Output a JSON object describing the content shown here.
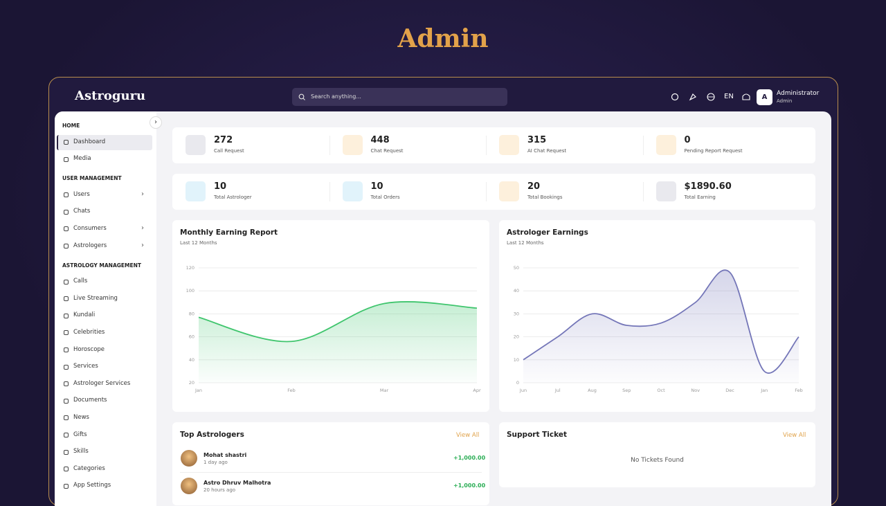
{
  "page_title": "Admin",
  "header": {
    "logo": "Astroguru",
    "search_placeholder": "Search anything...",
    "language": "EN",
    "user": {
      "initial": "A",
      "name": "Administrator",
      "role": "Admin"
    }
  },
  "sidebar": {
    "sections": [
      {
        "title": "HOME",
        "items": [
          {
            "label": "Dashboard",
            "active": true
          },
          {
            "label": "Media"
          }
        ]
      },
      {
        "title": "USER MANAGEMENT",
        "items": [
          {
            "label": "Users",
            "submenu": true
          },
          {
            "label": "Chats"
          },
          {
            "label": "Consumers",
            "submenu": true
          },
          {
            "label": "Astrologers",
            "submenu": true
          }
        ]
      },
      {
        "title": "ASTROLOGY MANAGEMENT",
        "items": [
          {
            "label": "Calls"
          },
          {
            "label": "Live Streaming"
          },
          {
            "label": "Kundali"
          },
          {
            "label": "Celebrities"
          },
          {
            "label": "Horoscope"
          },
          {
            "label": "Services"
          },
          {
            "label": "Astrologer Services"
          },
          {
            "label": "Documents"
          },
          {
            "label": "News"
          },
          {
            "label": "Gifts"
          },
          {
            "label": "Skills"
          },
          {
            "label": "Categories"
          },
          {
            "label": "App Settings"
          }
        ]
      }
    ]
  },
  "stats": [
    {
      "value": 272,
      "label": "Call Request",
      "color": "#e9e9ee"
    },
    {
      "value": 448,
      "label": "Chat Request",
      "color": "#fdf0dc"
    },
    {
      "value": 315,
      "label": "AI Chat Request",
      "color": "#fdf0dc"
    },
    {
      "value": 0,
      "label": "Pending Report Request",
      "color": "#fdf0dc"
    },
    {
      "value": 10,
      "label": "Total Astrologer",
      "color": "#e1f3fb"
    },
    {
      "value": 10,
      "label": "Total Orders",
      "color": "#e1f3fb"
    },
    {
      "value": 20,
      "label": "Total Bookings",
      "color": "#fdf0dc"
    },
    {
      "value": "$1890.60",
      "label": "Total Earning",
      "color": "#e9e9ee"
    }
  ],
  "chart_data": [
    {
      "type": "area",
      "title": "Monthly Earning Report",
      "subtitle": "Last 12 Months",
      "categories": [
        "Jan",
        "Feb",
        "Mar",
        "Apr"
      ],
      "values": [
        77,
        56,
        89,
        85
      ],
      "color": "#3fc56d",
      "ylim": [
        20,
        120
      ],
      "yticks": [
        20,
        40,
        60,
        80,
        100,
        120
      ],
      "grid": true
    },
    {
      "type": "area",
      "title": "Astrologer Earnings",
      "subtitle": "Last 12 Months",
      "categories": [
        "Jun",
        "Jul",
        "Aug",
        "Sep",
        "Oct",
        "Nov",
        "Dec",
        "Jan",
        "Feb"
      ],
      "values": [
        10,
        20,
        30,
        25,
        26,
        35,
        48,
        5,
        20
      ],
      "color": "#7476b8",
      "ylim": [
        0,
        50
      ],
      "yticks": [
        0,
        10,
        20,
        30,
        40,
        50
      ],
      "grid": true
    }
  ],
  "top_astrologers": {
    "title": "Top Astrologers",
    "link": "View All",
    "rows": [
      {
        "name": "Mohat shastri",
        "time": "1 day ago",
        "amount": "+1,000.00"
      },
      {
        "name": "Astro Dhruv Malhotra",
        "time": "20 hours ago",
        "amount": "+1,000.00"
      }
    ]
  },
  "support_ticket": {
    "title": "Support Ticket",
    "link": "View All",
    "empty": "No Tickets Found"
  }
}
